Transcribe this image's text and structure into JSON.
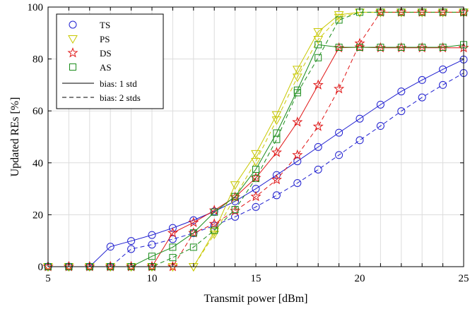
{
  "chart_data": {
    "type": "line",
    "xlabel": "Transmit power [dBm]",
    "ylabel": "Updated REs [%]",
    "xlim": [
      5,
      25
    ],
    "ylim": [
      0,
      100
    ],
    "xticks": [
      5,
      10,
      15,
      20,
      25
    ],
    "yticks": [
      0,
      20,
      40,
      60,
      80,
      100
    ],
    "grid": true,
    "legend_position": "top-left",
    "x": [
      5,
      6,
      7,
      8,
      9,
      10,
      11,
      12,
      13,
      14,
      15,
      16,
      17,
      18,
      19,
      20,
      21,
      22,
      23,
      24,
      25
    ],
    "legend": {
      "markers": [
        {
          "label": "TS",
          "series": "TS"
        },
        {
          "label": "PS",
          "series": "PS"
        },
        {
          "label": "DS",
          "series": "DS"
        },
        {
          "label": "AS",
          "series": "AS"
        }
      ],
      "lines": [
        {
          "label": "bias: 1 std",
          "dash": "solid"
        },
        {
          "label": "bias: 2 stds",
          "dash": "dashed"
        }
      ]
    },
    "series": [
      {
        "name": "TS",
        "bias": "1 std",
        "marker": "circle",
        "color": "#1f1fd0",
        "values": [
          0,
          0,
          0,
          7.7,
          9.9,
          12.2,
          14.9,
          17.9,
          21.3,
          25.2,
          30.0,
          35.3,
          40.6,
          46.1,
          51.6,
          57.0,
          62.4,
          67.5,
          71.9,
          76.0,
          79.8
        ]
      },
      {
        "name": "TS",
        "bias": "2 stds",
        "marker": "circle",
        "color": "#1f1fd0",
        "values": [
          0,
          0,
          0,
          0,
          6.8,
          8.5,
          10.6,
          12.9,
          15.8,
          19.2,
          23.0,
          27.5,
          32.2,
          37.4,
          43.0,
          48.7,
          54.2,
          59.9,
          65.2,
          70.0,
          74.6
        ]
      },
      {
        "name": "PS",
        "bias": "1 std",
        "marker": "triangle-down",
        "color": "#c8c800",
        "values": [
          0,
          0,
          0,
          0,
          0,
          0,
          0,
          0,
          13.5,
          31.5,
          43.5,
          58.5,
          76.0,
          90.5,
          97.0,
          98.0,
          98.0,
          98.0,
          98.0,
          98.0,
          98.0
        ]
      },
      {
        "name": "PS",
        "bias": "2 stds",
        "marker": "triangle-down",
        "color": "#c8c800",
        "values": [
          0,
          0,
          0,
          0,
          0,
          0,
          0,
          0,
          12.5,
          27.0,
          40.5,
          56.5,
          73.0,
          87.5,
          96.0,
          98.0,
          98.0,
          98.0,
          98.0,
          98.0,
          98.0
        ]
      },
      {
        "name": "DS",
        "bias": "1 std",
        "marker": "star",
        "color": "#e01515",
        "values": [
          0,
          0,
          0,
          0,
          0,
          0,
          13.0,
          17.0,
          21.7,
          26.8,
          34.2,
          44.0,
          55.7,
          70.0,
          84.3,
          84.5,
          84.3,
          84.3,
          84.3,
          84.3,
          84.3
        ]
      },
      {
        "name": "DS",
        "bias": "2 stds",
        "marker": "star",
        "color": "#e01515",
        "values": [
          0,
          0,
          0,
          0,
          0,
          0,
          0,
          13.0,
          16.5,
          21.5,
          27.0,
          33.5,
          43.0,
          54.0,
          68.5,
          86.0,
          98.0,
          98.0,
          98.0,
          98.0,
          98.0
        ]
      },
      {
        "name": "AS",
        "bias": "1 std",
        "marker": "square",
        "color": "#1a8c1a",
        "values": [
          0,
          0,
          0,
          0,
          0,
          4.0,
          7.5,
          13.0,
          21.0,
          27.0,
          37.5,
          51.5,
          68.0,
          85.5,
          84.5,
          84.5,
          84.5,
          84.5,
          84.5,
          84.5,
          85.5
        ]
      },
      {
        "name": "AS",
        "bias": "2 stds",
        "marker": "square",
        "color": "#1a8c1a",
        "values": [
          0,
          0,
          0,
          0,
          0,
          0,
          3.5,
          7.5,
          14.0,
          22.0,
          34.0,
          49.0,
          67.0,
          80.5,
          95.0,
          98.0,
          98.0,
          98.0,
          98.0,
          98.0,
          98.0
        ]
      }
    ]
  }
}
